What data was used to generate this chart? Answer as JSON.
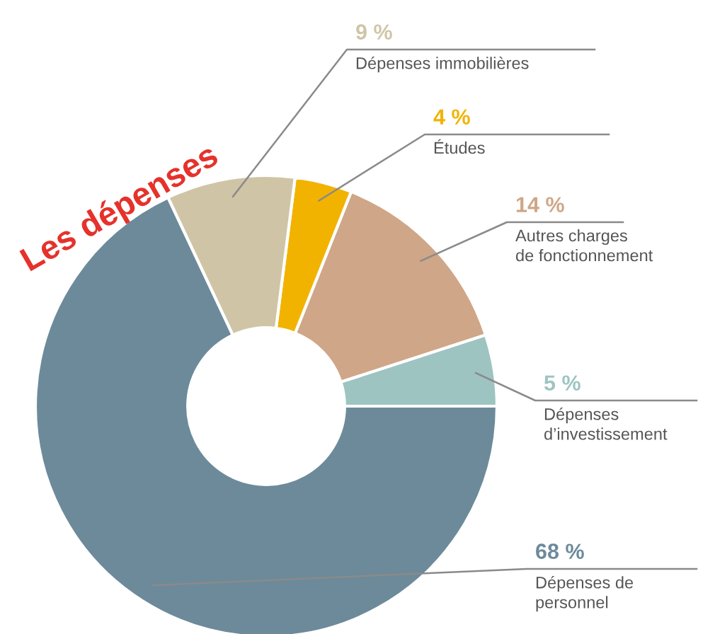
{
  "chart_data": {
    "type": "donut",
    "title": "Les dépenses",
    "categories": [
      "Dépenses\nd’investissement",
      "Autres charges\nde fonctionnement",
      "Études",
      "Dépenses immobilières",
      "Dépenses de\npersonnel"
    ],
    "values": [
      5,
      14,
      4,
      9,
      68
    ],
    "value_labels": [
      "5 %",
      "14 %",
      "4 %",
      "9 %",
      "68 %"
    ],
    "colors": [
      "#9dc4c1",
      "#cfa687",
      "#f2b300",
      "#cfc5a6",
      "#6c8a9a"
    ]
  }
}
